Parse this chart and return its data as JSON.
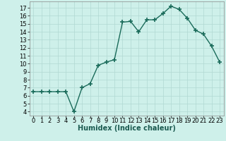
{
  "x": [
    0,
    1,
    2,
    3,
    4,
    5,
    6,
    7,
    8,
    9,
    10,
    11,
    12,
    13,
    14,
    15,
    16,
    17,
    18,
    19,
    20,
    21,
    22,
    23
  ],
  "y": [
    6.5,
    6.5,
    6.5,
    6.5,
    6.5,
    4.0,
    7.0,
    7.5,
    9.8,
    10.2,
    10.5,
    15.2,
    15.3,
    14.0,
    15.5,
    15.5,
    16.3,
    17.2,
    16.8,
    15.7,
    14.2,
    13.7,
    12.2,
    10.2
  ],
  "line_color": "#1a6b5a",
  "marker": "+",
  "marker_size": 4,
  "bg_color": "#cef0ea",
  "grid_color": "#b0d8d2",
  "xlabel": "Humidex (Indice chaleur)",
  "xlim": [
    -0.5,
    23.5
  ],
  "ylim": [
    3.5,
    17.8
  ],
  "yticks": [
    4,
    5,
    6,
    7,
    8,
    9,
    10,
    11,
    12,
    13,
    14,
    15,
    16,
    17
  ],
  "xticks": [
    0,
    1,
    2,
    3,
    4,
    5,
    6,
    7,
    8,
    9,
    10,
    11,
    12,
    13,
    14,
    15,
    16,
    17,
    18,
    19,
    20,
    21,
    22,
    23
  ],
  "xlabel_fontsize": 7,
  "tick_fontsize": 6,
  "linewidth": 1.0,
  "spine_color": "#888888"
}
